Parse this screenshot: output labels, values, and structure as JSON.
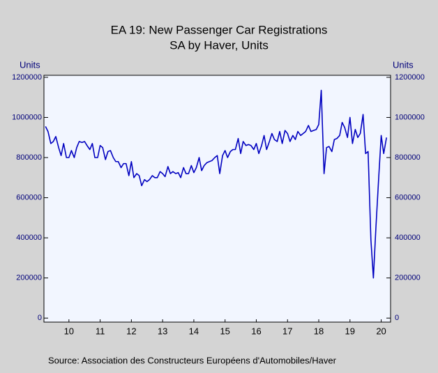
{
  "chart_data": {
    "type": "line",
    "title": "EA 19: New Passenger Car Registrations",
    "subtitle": "SA by Haver, Units",
    "ylabel": "Units",
    "y2label": "Units",
    "source": "Source:   Association des Constructeurs Européens d'Automobiles/Haver",
    "xlim": [
      2009.7,
      2020.8
    ],
    "xticks": [
      {
        "value": 2010.5,
        "label": "10"
      },
      {
        "value": 2011.5,
        "label": "11"
      },
      {
        "value": 2012.5,
        "label": "12"
      },
      {
        "value": 2013.5,
        "label": "13"
      },
      {
        "value": 2014.5,
        "label": "14"
      },
      {
        "value": 2015.5,
        "label": "15"
      },
      {
        "value": 2016.5,
        "label": "16"
      },
      {
        "value": 2017.5,
        "label": "17"
      },
      {
        "value": 2018.5,
        "label": "18"
      },
      {
        "value": 2019.5,
        "label": "19"
      },
      {
        "value": 2020.5,
        "label": "20"
      }
    ],
    "ylim": [
      -20000,
      1210000
    ],
    "yticks": [
      0,
      200000,
      400000,
      600000,
      800000,
      1000000,
      1200000
    ],
    "y2lim": [
      -20000,
      1210000
    ],
    "y2ticks": [
      0,
      200000,
      400000,
      600000,
      800000,
      1000000,
      1200000
    ],
    "x": [
      2009.75,
      2009.83,
      2009.92,
      2010.0,
      2010.08,
      2010.17,
      2010.25,
      2010.33,
      2010.42,
      2010.5,
      2010.58,
      2010.67,
      2010.75,
      2010.83,
      2010.92,
      2011.0,
      2011.08,
      2011.17,
      2011.25,
      2011.33,
      2011.42,
      2011.5,
      2011.58,
      2011.67,
      2011.75,
      2011.83,
      2011.92,
      2012.0,
      2012.08,
      2012.17,
      2012.25,
      2012.33,
      2012.42,
      2012.5,
      2012.58,
      2012.67,
      2012.75,
      2012.83,
      2012.92,
      2013.0,
      2013.08,
      2013.17,
      2013.25,
      2013.33,
      2013.42,
      2013.5,
      2013.58,
      2013.67,
      2013.75,
      2013.83,
      2013.92,
      2014.0,
      2014.08,
      2014.17,
      2014.25,
      2014.33,
      2014.42,
      2014.5,
      2014.58,
      2014.67,
      2014.75,
      2014.83,
      2014.92,
      2015.0,
      2015.08,
      2015.17,
      2015.25,
      2015.33,
      2015.42,
      2015.5,
      2015.58,
      2015.67,
      2015.75,
      2015.83,
      2015.92,
      2016.0,
      2016.08,
      2016.17,
      2016.25,
      2016.33,
      2016.42,
      2016.5,
      2016.58,
      2016.67,
      2016.75,
      2016.83,
      2016.92,
      2017.0,
      2017.08,
      2017.17,
      2017.25,
      2017.33,
      2017.42,
      2017.5,
      2017.58,
      2017.67,
      2017.75,
      2017.83,
      2017.92,
      2018.0,
      2018.08,
      2018.17,
      2018.25,
      2018.33,
      2018.42,
      2018.5,
      2018.58,
      2018.67,
      2018.75,
      2018.83,
      2018.92,
      2019.0,
      2019.08,
      2019.17,
      2019.25,
      2019.33,
      2019.42,
      2019.5,
      2019.58,
      2019.67,
      2019.75,
      2019.83,
      2019.92,
      2020.0,
      2020.08,
      2020.17,
      2020.25,
      2020.33,
      2020.42,
      2020.5,
      2020.58,
      2020.67
    ],
    "series": [
      {
        "name": "New Passenger Car Registrations",
        "color": "#0000c0",
        "values": [
          955000,
          930000,
          870000,
          880000,
          905000,
          850000,
          810000,
          870000,
          800000,
          800000,
          835000,
          800000,
          850000,
          880000,
          875000,
          880000,
          860000,
          840000,
          870000,
          800000,
          800000,
          860000,
          850000,
          790000,
          830000,
          835000,
          800000,
          780000,
          780000,
          750000,
          770000,
          770000,
          710000,
          780000,
          700000,
          720000,
          710000,
          660000,
          690000,
          680000,
          690000,
          710000,
          700000,
          700000,
          730000,
          720000,
          705000,
          755000,
          720000,
          730000,
          720000,
          725000,
          700000,
          750000,
          720000,
          720000,
          760000,
          725000,
          750000,
          800000,
          735000,
          760000,
          775000,
          780000,
          785000,
          800000,
          810000,
          720000,
          810000,
          835000,
          800000,
          830000,
          840000,
          840000,
          895000,
          820000,
          880000,
          860000,
          865000,
          860000,
          840000,
          870000,
          820000,
          860000,
          910000,
          840000,
          880000,
          920000,
          890000,
          880000,
          930000,
          870000,
          935000,
          920000,
          880000,
          910000,
          890000,
          930000,
          910000,
          920000,
          930000,
          960000,
          930000,
          935000,
          940000,
          965000,
          1135000,
          720000,
          850000,
          855000,
          830000,
          890000,
          895000,
          910000,
          975000,
          950000,
          900000,
          1000000,
          870000,
          940000,
          900000,
          920000,
          1015000,
          820000,
          830000,
          390000,
          200000,
          450000,
          700000,
          910000,
          820000,
          900000
        ]
      }
    ]
  }
}
